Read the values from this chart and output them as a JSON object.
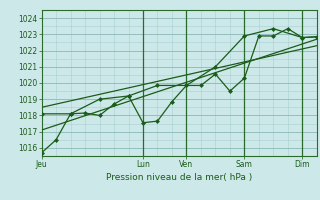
{
  "bg_color": "#cde8e8",
  "grid_major_color": "#8ab8b8",
  "grid_minor_color": "#a8d0d0",
  "line_color": "#1a5c1a",
  "spine_color": "#2a6a2a",
  "title": "Pression niveau de la mer( hPa )",
  "ylim": [
    1015.5,
    1024.5
  ],
  "yticks": [
    1016,
    1017,
    1018,
    1019,
    1020,
    1021,
    1022,
    1023,
    1024
  ],
  "xtick_labels": [
    "Jeu",
    "Lun",
    "Ven",
    "Sam",
    "Dim"
  ],
  "xtick_positions": [
    0,
    3.5,
    5.0,
    7.0,
    9.0
  ],
  "vline_positions": [
    3.5,
    5.0,
    7.0,
    9.0
  ],
  "xmin": 0,
  "xmax": 9.5,
  "line1_x": [
    0,
    0.5,
    1.0,
    1.5,
    2.0,
    2.5,
    3.0,
    3.5,
    4.0,
    4.5,
    5.0,
    5.5,
    6.0,
    6.5,
    7.0,
    7.5,
    8.0,
    8.5,
    9.0,
    9.5
  ],
  "line1_y": [
    1015.7,
    1016.5,
    1018.1,
    1018.15,
    1018.0,
    1018.7,
    1019.2,
    1017.55,
    1017.65,
    1018.85,
    1019.85,
    1019.85,
    1020.55,
    1019.5,
    1020.3,
    1022.9,
    1022.9,
    1023.35,
    1022.8,
    1022.85
  ],
  "line2_x": [
    0,
    1.0,
    2.0,
    3.0,
    4.0,
    5.0,
    6.0,
    7.0,
    8.0,
    9.0,
    9.5
  ],
  "line2_y": [
    1018.1,
    1018.1,
    1019.0,
    1019.2,
    1019.85,
    1019.85,
    1021.0,
    1022.9,
    1023.35,
    1022.8,
    1022.85
  ],
  "trend1_x": [
    0,
    9.5
  ],
  "trend1_y": [
    1018.5,
    1022.3
  ],
  "trend2_x": [
    0,
    9.5
  ],
  "trend2_y": [
    1017.1,
    1022.7
  ],
  "marker_style": "D",
  "marker_size": 2.0,
  "linewidth": 0.9,
  "tick_labelsize": 5.5,
  "title_fontsize": 6.5
}
